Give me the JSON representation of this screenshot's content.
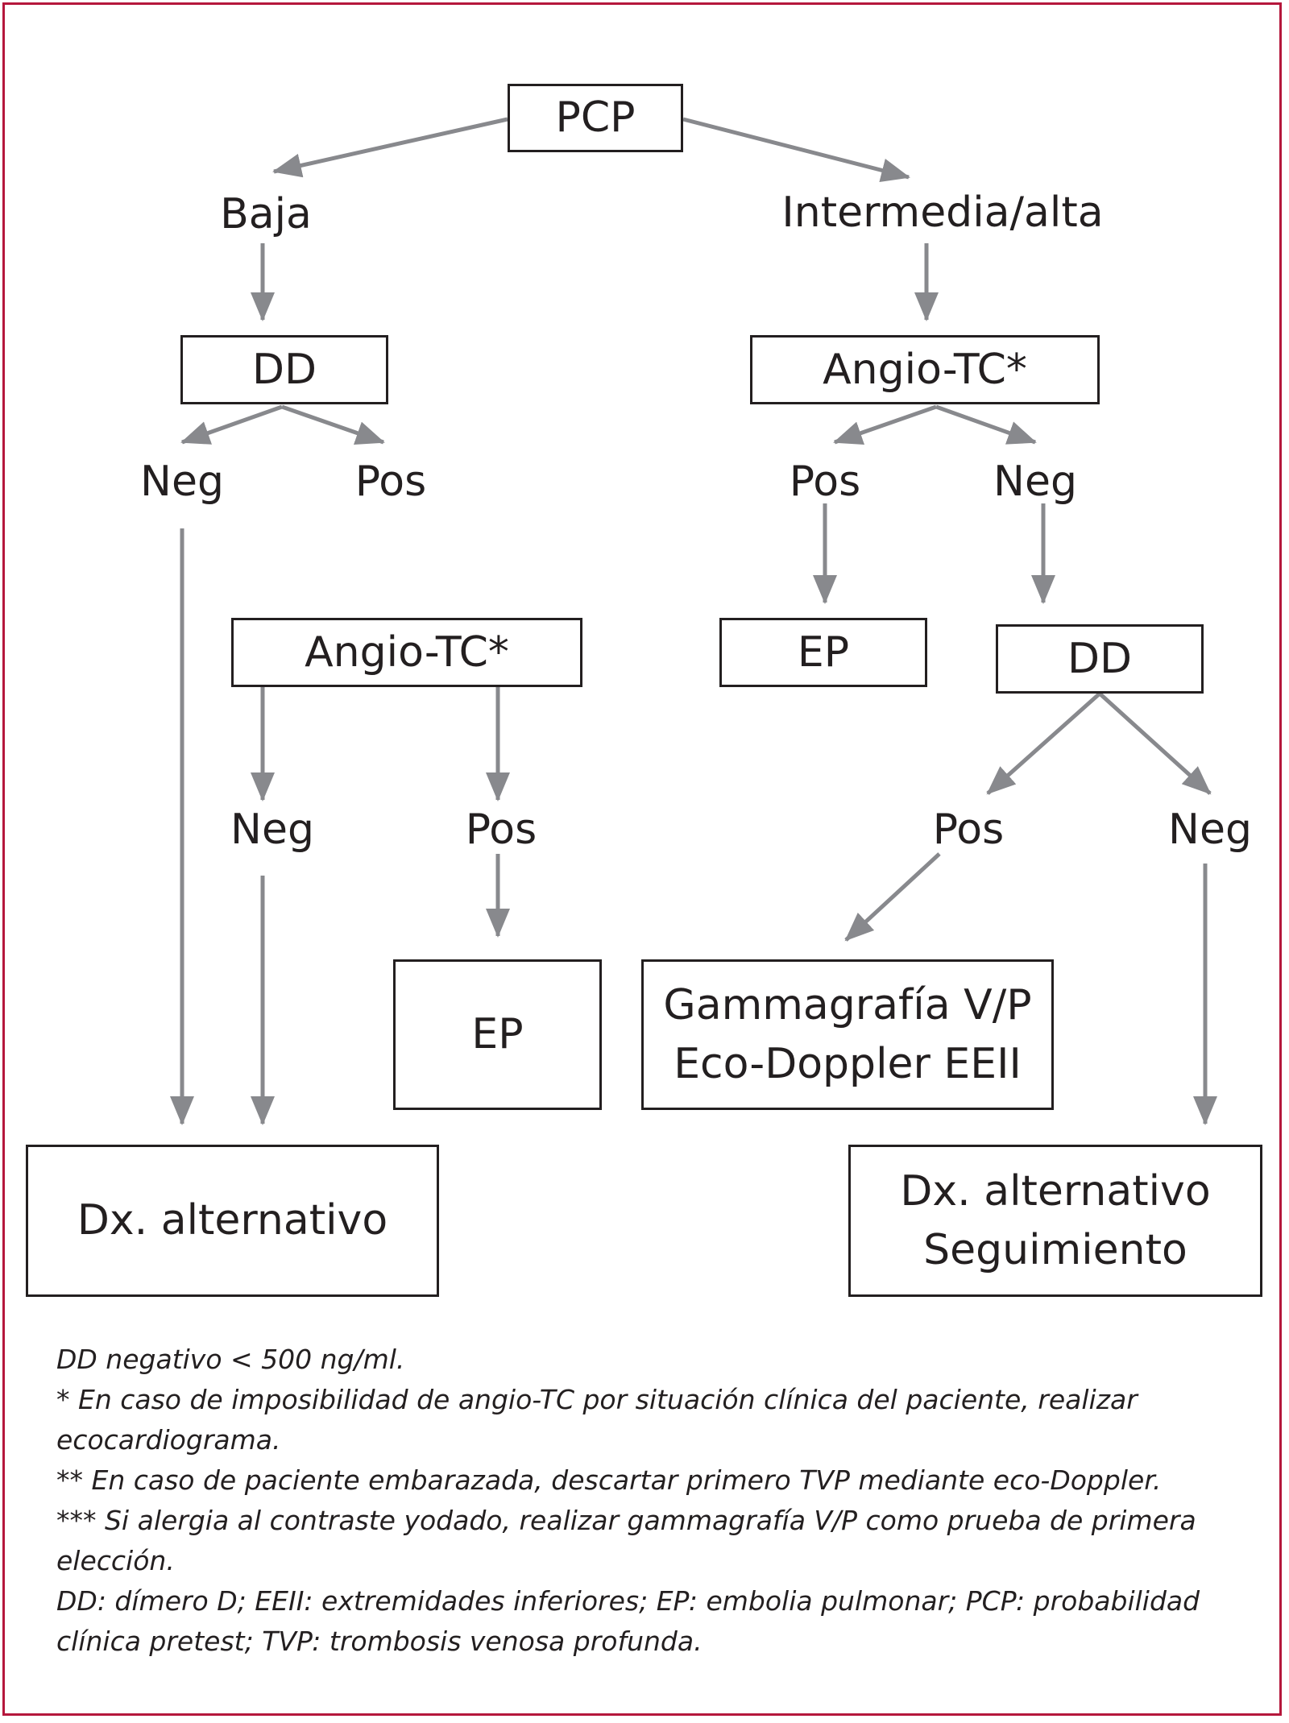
{
  "colors": {
    "border": "#b5173c",
    "arrow": "#88898d",
    "text": "#231f20"
  },
  "nodes": {
    "pcp": "PCP",
    "dd_low": "DD",
    "angio_right": "Angio-TC*",
    "angio_left": "Angio-TC*",
    "ep_right": "EP",
    "dd_right": "DD",
    "ep_left": "EP",
    "gamma": {
      "line1": "Gammagrafía V/P",
      "line2": "Eco-Doppler EEII"
    },
    "dx_left": "Dx. alternativo",
    "dx_right": {
      "line1": "Dx. alternativo",
      "line2": "Seguimiento"
    }
  },
  "labels": {
    "baja": "Baja",
    "intermedia": "Intermedia/alta",
    "neg_1": "Neg",
    "pos_1": "Pos",
    "pos_2": "Pos",
    "neg_2": "Neg",
    "neg_3": "Neg",
    "pos_3": "Pos",
    "pos_4": "Pos",
    "neg_4": "Neg"
  },
  "notes": [
    "DD negativo < 500 ng/ml.",
    "* En caso de imposibilidad de angio-TC por situación clínica del paciente, realizar ecocardiograma.",
    "** En caso de paciente embarazada, descartar primero TVP mediante eco-Doppler.",
    "*** Si alergia al contraste yodado, realizar gammagrafía V/P como prueba de primera elección.",
    "DD: dímero D; EEII: extremidades inferiores; EP: embolia pulmonar; PCP: probabilidad clínica pretest; TVP: trombosis venosa profunda."
  ]
}
